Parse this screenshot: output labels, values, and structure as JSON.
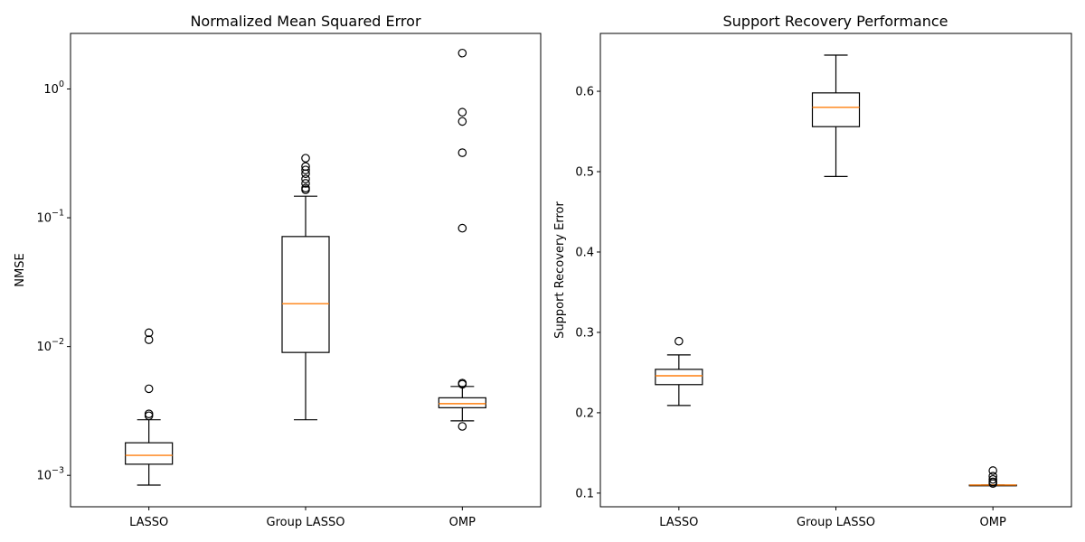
{
  "chart_data": [
    {
      "type": "box",
      "title": "Normalized Mean Squared Error",
      "xlabel": "",
      "ylabel": "NMSE",
      "yscale": "log",
      "ylim": [
        0.00057,
        2.7
      ],
      "yticks": [
        {
          "value": 0.001,
          "base": "10",
          "exp": "−3"
        },
        {
          "value": 0.01,
          "base": "10",
          "exp": "−2"
        },
        {
          "value": 0.1,
          "base": "10",
          "exp": "−1"
        },
        {
          "value": 1,
          "base": "10",
          "exp": "0"
        }
      ],
      "categories": [
        "LASSO",
        "Group LASSO",
        "OMP"
      ],
      "boxes": [
        {
          "whisker_low": 0.00084,
          "q1": 0.00122,
          "median": 0.00143,
          "q3": 0.00179,
          "whisker_high": 0.0027,
          "fliers": [
            0.0128,
            0.0113,
            0.0047,
            0.003,
            0.0029
          ]
        },
        {
          "whisker_low": 0.0027,
          "q1": 0.009,
          "median": 0.0215,
          "q3": 0.0715,
          "whisker_high": 0.147,
          "fliers": [
            0.29,
            0.25,
            0.235,
            0.22,
            0.2,
            0.185,
            0.17,
            0.165
          ]
        },
        {
          "whisker_low": 0.00265,
          "q1": 0.00335,
          "median": 0.0036,
          "q3": 0.004,
          "whisker_high": 0.0049,
          "fliers": [
            1.9,
            0.66,
            0.56,
            0.32,
            0.083,
            0.0052,
            0.0051,
            0.0024
          ]
        }
      ]
    },
    {
      "type": "box",
      "title": "Support Recovery Performance",
      "xlabel": "",
      "ylabel": "Support Recovery Error",
      "yscale": "linear",
      "ylim": [
        0.083,
        0.672
      ],
      "yticks": [
        {
          "value": 0.1,
          "label": "0.1"
        },
        {
          "value": 0.2,
          "label": "0.2"
        },
        {
          "value": 0.3,
          "label": "0.3"
        },
        {
          "value": 0.4,
          "label": "0.4"
        },
        {
          "value": 0.5,
          "label": "0.5"
        },
        {
          "value": 0.6,
          "label": "0.6"
        }
      ],
      "categories": [
        "LASSO",
        "Group LASSO",
        "OMP"
      ],
      "boxes": [
        {
          "whisker_low": 0.209,
          "q1": 0.235,
          "median": 0.246,
          "q3": 0.254,
          "whisker_high": 0.272,
          "fliers": [
            0.289
          ]
        },
        {
          "whisker_low": 0.494,
          "q1": 0.556,
          "median": 0.58,
          "q3": 0.598,
          "whisker_high": 0.645,
          "fliers": []
        },
        {
          "whisker_low": 0.11,
          "q1": 0.11,
          "median": 0.11,
          "q3": 0.11,
          "whisker_high": 0.11,
          "fliers": [
            0.128,
            0.121,
            0.117,
            0.114,
            0.112
          ]
        }
      ]
    }
  ]
}
